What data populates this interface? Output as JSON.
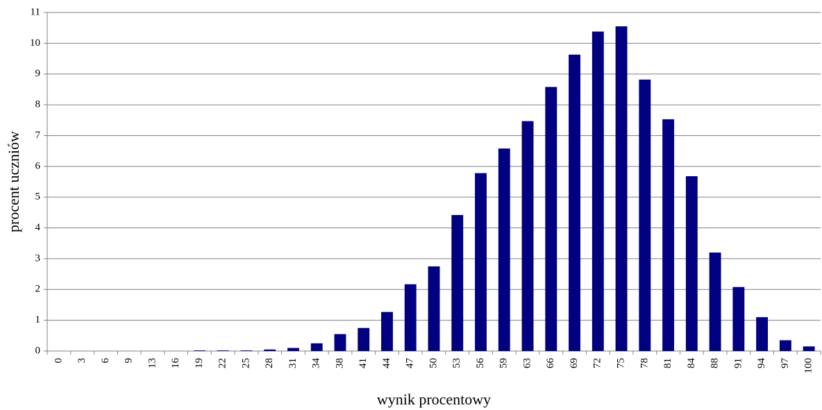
{
  "chart_data": {
    "type": "bar",
    "x_label": "wynik procentowy",
    "y_label": "procent uczniów",
    "categories": [
      "0",
      "3",
      "6",
      "9",
      "13",
      "16",
      "19",
      "22",
      "25",
      "28",
      "31",
      "34",
      "38",
      "41",
      "44",
      "47",
      "50",
      "53",
      "56",
      "59",
      "63",
      "66",
      "69",
      "72",
      "75",
      "78",
      "81",
      "84",
      "88",
      "91",
      "94",
      "97",
      "100"
    ],
    "values": [
      0,
      0,
      0,
      0,
      0,
      0,
      0.02,
      0.02,
      0.02,
      0.05,
      0.1,
      0.25,
      0.55,
      0.75,
      1.27,
      2.17,
      2.75,
      4.42,
      5.78,
      6.58,
      7.47,
      8.58,
      9.63,
      10.38,
      10.55,
      8.82,
      7.53,
      5.68,
      3.2,
      2.08,
      1.1,
      0.35,
      0.15
    ],
    "color": "#000080",
    "ylim": [
      0,
      11
    ],
    "yticks": [
      0,
      1,
      2,
      3,
      4,
      5,
      6,
      7,
      8,
      9,
      10,
      11
    ],
    "grid": true
  }
}
